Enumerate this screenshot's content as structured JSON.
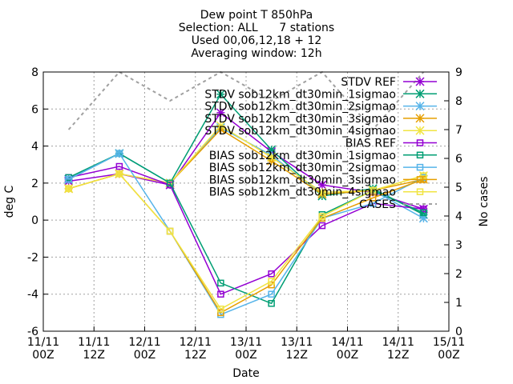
{
  "title_lines": [
    "Dew point T 850hPa",
    "Selection: ALL      7 stations",
    "Used 00,06,12,18 + 12",
    "Averaging window: 12h"
  ],
  "chart_data": {
    "type": "line",
    "xlabel": "Date",
    "ylabel": "deg C",
    "y2label": "No cases",
    "x_ticks": [
      {
        "x": 0,
        "l1": "11/11",
        "l2": "00Z"
      },
      {
        "x": 12,
        "l1": "11/11",
        "l2": "12Z"
      },
      {
        "x": 24,
        "l1": "12/11",
        "l2": "00Z"
      },
      {
        "x": 36,
        "l1": "12/11",
        "l2": "12Z"
      },
      {
        "x": 48,
        "l1": "13/11",
        "l2": "00Z"
      },
      {
        "x": 60,
        "l1": "13/11",
        "l2": "12Z"
      },
      {
        "x": 72,
        "l1": "14/11",
        "l2": "00Z"
      },
      {
        "x": 84,
        "l1": "14/11",
        "l2": "12Z"
      },
      {
        "x": 96,
        "l1": "15/11",
        "l2": "00Z"
      }
    ],
    "xlim": [
      0,
      96
    ],
    "ylim": [
      -6,
      8
    ],
    "y_ticks": [
      -6,
      -4,
      -2,
      0,
      2,
      4,
      6,
      8
    ],
    "y2lim": [
      0,
      9
    ],
    "y2_ticks": [
      0,
      1,
      2,
      3,
      4,
      5,
      6,
      7,
      8,
      9
    ],
    "grid": true,
    "legend_position": "top-right",
    "x": [
      6,
      18,
      30,
      42,
      54,
      66,
      78,
      90
    ],
    "series": [
      {
        "name": "STDV REF",
        "color": "#9400d3",
        "marker": "star",
        "values": [
          2.1,
          2.5,
          1.9,
          5.8,
          3.7,
          1.9,
          1.5,
          0.6
        ]
      },
      {
        "name": "STDV sob12km_dt30min_1sigmao",
        "color": "#009e73",
        "marker": "star",
        "values": [
          2.2,
          3.6,
          2.0,
          6.8,
          3.8,
          1.3,
          1.7,
          0.3
        ]
      },
      {
        "name": "STDV sob12km_dt30min_2sigmao",
        "color": "#56b4e9",
        "marker": "star",
        "values": [
          2.2,
          3.6,
          2.0,
          5.0,
          3.5,
          1.4,
          1.6,
          0.1
        ]
      },
      {
        "name": "STDV sob12km_dt30min_3sigmao",
        "color": "#e69f00",
        "marker": "star",
        "values": [
          1.7,
          2.5,
          2.0,
          4.9,
          3.2,
          1.4,
          1.6,
          2.2
        ]
      },
      {
        "name": "STDV sob12km_dt30min_4sigmao",
        "color": "#f0e442",
        "marker": "star",
        "values": [
          1.7,
          2.5,
          2.0,
          5.1,
          3.4,
          1.5,
          1.6,
          2.4
        ]
      },
      {
        "name": "BIAS REF",
        "color": "#9400d3",
        "marker": "square",
        "values": [
          2.3,
          2.9,
          1.9,
          -4.0,
          -2.9,
          -0.3,
          0.9,
          0.6
        ]
      },
      {
        "name": "BIAS sob12km_dt30min_1sigmao",
        "color": "#009e73",
        "marker": "square",
        "values": [
          2.3,
          3.6,
          2.0,
          -3.4,
          -4.5,
          0.3,
          1.6,
          0.4
        ]
      },
      {
        "name": "BIAS sob12km_dt30min_2sigmao",
        "color": "#56b4e9",
        "marker": "square",
        "values": [
          2.2,
          3.6,
          -0.6,
          -5.1,
          -4.0,
          0.1,
          0.9,
          2.3
        ]
      },
      {
        "name": "BIAS sob12km_dt30min_3sigmao",
        "color": "#e69f00",
        "marker": "square",
        "values": [
          1.7,
          2.5,
          -0.6,
          -5.0,
          -3.5,
          0.1,
          1.2,
          2.2
        ]
      },
      {
        "name": "BIAS sob12km_dt30min_4sigmao",
        "color": "#f0e442",
        "marker": "square",
        "values": [
          1.7,
          2.5,
          -0.6,
          -4.8,
          -3.3,
          0.2,
          1.6,
          2.4
        ]
      }
    ],
    "cases": {
      "name": "CASES",
      "color": "#a0a0a0",
      "axis": "right",
      "x": [
        6,
        18,
        30,
        42,
        54,
        66,
        78,
        90
      ],
      "values": [
        7,
        9,
        8,
        9,
        8,
        9,
        7,
        9
      ]
    }
  }
}
